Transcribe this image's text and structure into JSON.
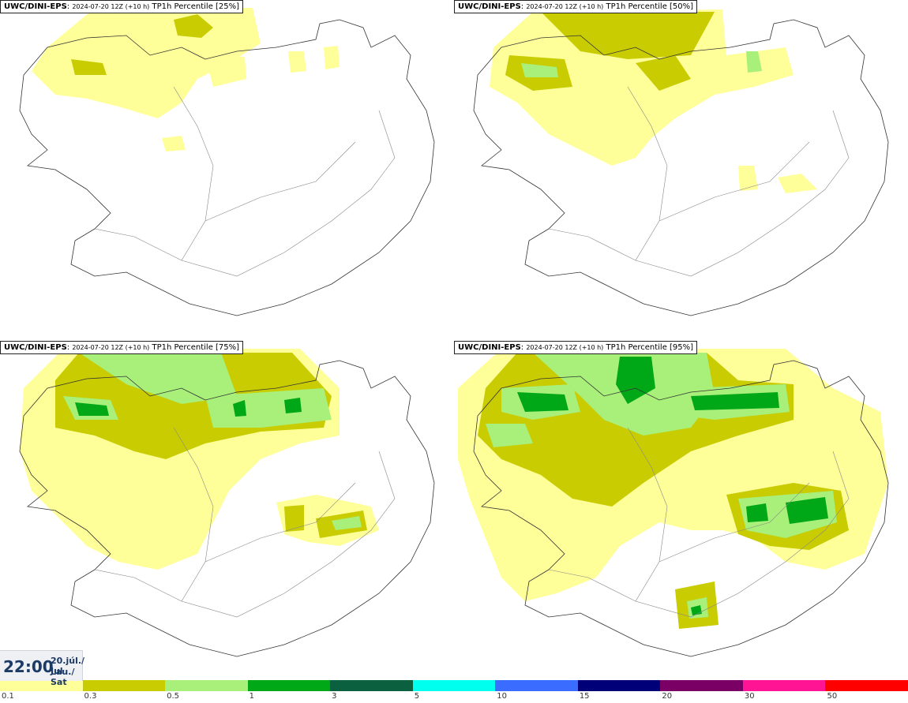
{
  "panels": [
    {
      "model": "UWC/DINI-EPS",
      "run": "2024-07-20 12Z (+10 h)",
      "field": "TP1h Percentile [25%]"
    },
    {
      "model": "UWC/DINI-EPS",
      "run": "2024-07-20 12Z (+10 h)",
      "field": "TP1h Percentile [50%]"
    },
    {
      "model": "UWC/DINI-EPS",
      "run": "2024-07-20 12Z (+10 h)",
      "field": "TP1h Percentile [75%]"
    },
    {
      "model": "UWC/DINI-EPS",
      "run": "2024-07-20 12Z (+10 h)",
      "field": "TP1h Percentile [95%]"
    }
  ],
  "valid_time": {
    "time": "22:00",
    "date_line1": "20.júl./ Jul",
    "date_line2": "Lau./ Sat"
  },
  "legend": {
    "ticks": [
      "0.1",
      "0.3",
      "0.5",
      "1",
      "3",
      "5",
      "10",
      "15",
      "20",
      "30",
      "50"
    ],
    "colors": [
      "#ffff99",
      "#c8cc00",
      "#a8f07a",
      "#00a818",
      "#0b6040",
      "#00ffee",
      "#3a6cff",
      "#000078",
      "#7a0066",
      "#ff1494",
      "#ff0000"
    ]
  }
}
